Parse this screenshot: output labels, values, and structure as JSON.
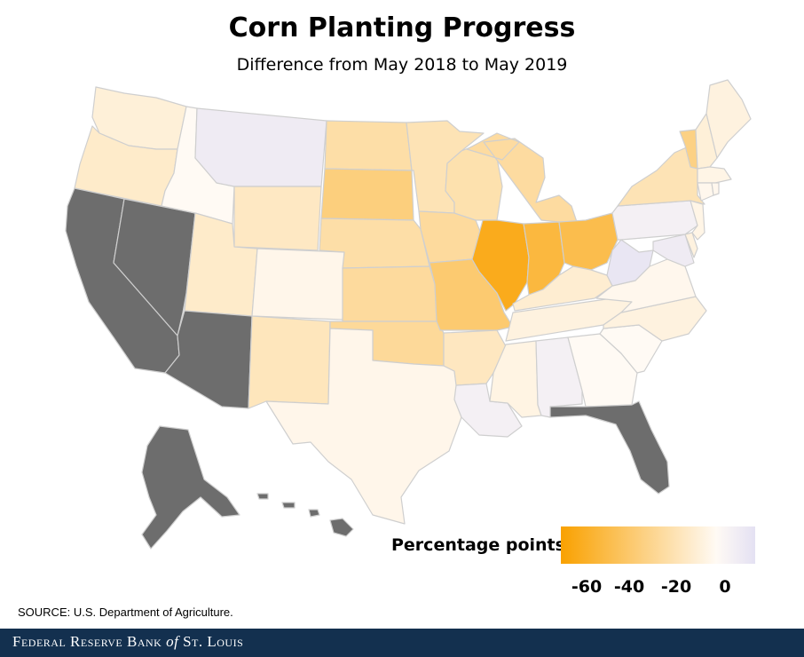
{
  "title": "Corn Planting Progress",
  "subtitle": "Difference from May 2018 to May 2019",
  "legend": {
    "label": "Percentage points",
    "ticks": [
      "-60",
      "-40",
      "-20",
      "0"
    ],
    "tick_values": [
      -60,
      -40,
      -20,
      0
    ],
    "range": [
      -70,
      5
    ],
    "color_min": "#f9a100",
    "color_mid": "#fffaf4",
    "color_max": "#e4e1f3"
  },
  "no_data_color": "#6d6d6d",
  "states": {
    "WA": -8,
    "OR": -12,
    "ID": 0,
    "MT": 3,
    "WY": -14,
    "UT": -12,
    "CO": -3,
    "NM": -16,
    "ND": -22,
    "SD": -34,
    "NE": -22,
    "KS": -25,
    "OK": -26,
    "TX": -3,
    "MN": -18,
    "IA": -25,
    "MO": -38,
    "AR": -15,
    "LA": 2,
    "WI": -20,
    "IL": -62,
    "IN": -52,
    "OH": -48,
    "MI": -24,
    "KY": -10,
    "TN": -6,
    "MS": -5,
    "AL": 2,
    "GA": 0,
    "FL": null,
    "SC": 0,
    "NC": -6,
    "VA": -2,
    "WV": 4,
    "PA": 2,
    "NY": -18,
    "VT": -32,
    "NH": -8,
    "ME": -6,
    "MA": -4,
    "CT": -2,
    "RI": -2,
    "NJ": -4,
    "DE": -6,
    "MD": 3,
    "CA": null,
    "NV": null,
    "AZ": null,
    "AK": null,
    "HI": null
  },
  "source": "SOURCE: U.S. Department of Agriculture.",
  "footer": {
    "brand_part1": "Federal Reserve Bank ",
    "brand_of": "of",
    "brand_part2": " St. Louis"
  }
}
